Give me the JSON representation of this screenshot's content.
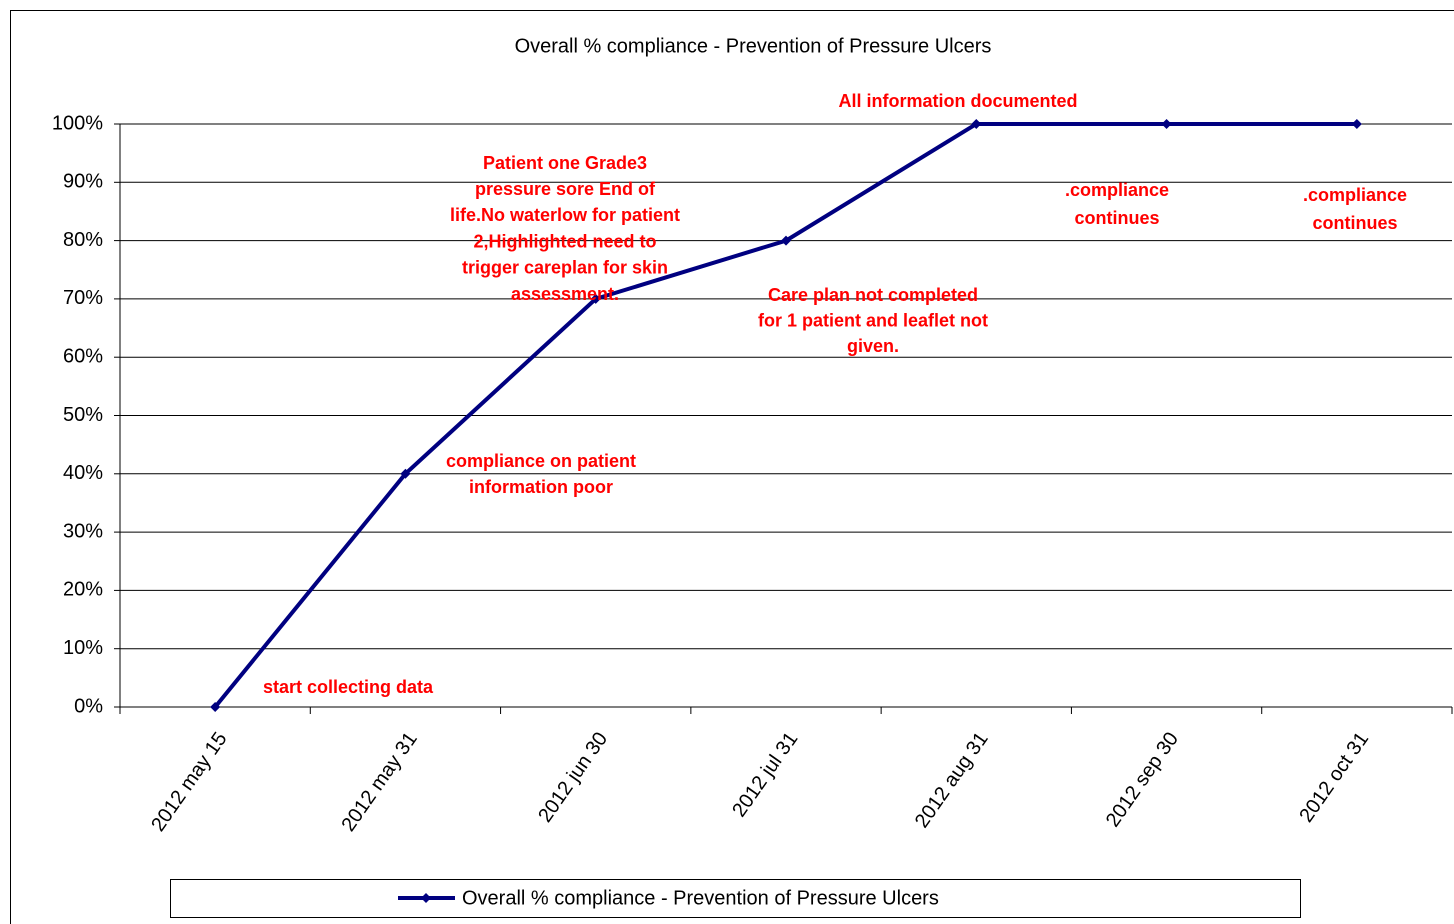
{
  "chart_data": {
    "type": "line",
    "title": "Overall % compliance - Prevention of Pressure Ulcers",
    "categories": [
      "2012 may 15",
      "2012 may 31",
      "2012 jun 30",
      "2012 jul 31",
      "2012 aug 31",
      "2012 sep 30",
      "2012 oct 31"
    ],
    "series": [
      {
        "name": "Overall % compliance - Prevention of Pressure Ulcers",
        "color": "#000080",
        "values": [
          0,
          40,
          70,
          80,
          100,
          100,
          100
        ]
      }
    ],
    "ylim": [
      0,
      100
    ],
    "yticks": [
      {
        "value": 0,
        "label": "0%"
      },
      {
        "value": 10,
        "label": "10%"
      },
      {
        "value": 20,
        "label": "20%"
      },
      {
        "value": 30,
        "label": "30%"
      },
      {
        "value": 40,
        "label": "40%"
      },
      {
        "value": 50,
        "label": "50%"
      },
      {
        "value": 60,
        "label": "60%"
      },
      {
        "value": 70,
        "label": "70%"
      },
      {
        "value": 80,
        "label": "80%"
      },
      {
        "value": 90,
        "label": "90%"
      },
      {
        "value": 100,
        "label": "100%"
      }
    ],
    "grid": true,
    "legend": "bottom",
    "annotations": [
      {
        "lines": [
          "start collecting data"
        ]
      },
      {
        "lines": [
          "compliance on patient",
          "information poor"
        ]
      },
      {
        "lines": [
          "Patient one Grade3",
          "pressure sore End of",
          "life.No waterlow for patient",
          "2,Highlighted need to",
          "trigger careplan for skin",
          "assessment."
        ]
      },
      {
        "lines": [
          "Care plan not completed",
          "for 1 patient and leaflet not",
          "given."
        ]
      },
      {
        "lines": [
          "All information documented"
        ]
      },
      {
        "lines": [
          ".compliance",
          "continues"
        ]
      },
      {
        "lines": [
          ".compliance",
          "continues"
        ]
      }
    ]
  }
}
